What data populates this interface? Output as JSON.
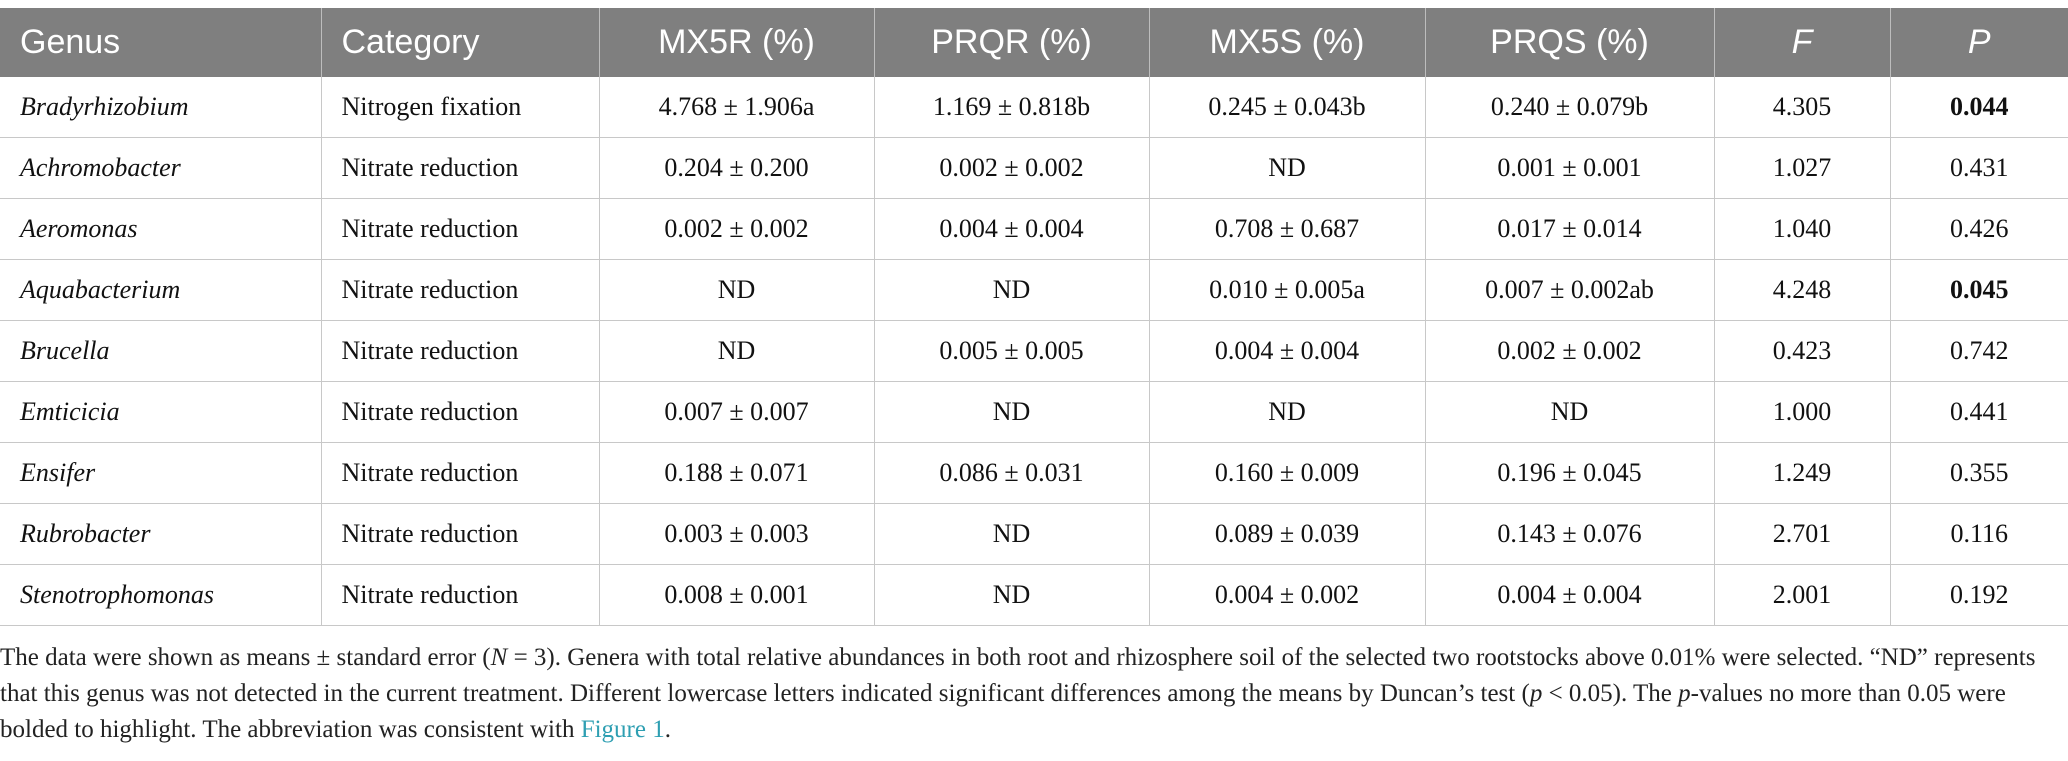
{
  "headers": [
    "Genus",
    "Category",
    "MX5R (%)",
    "PRQR (%)",
    "MX5S (%)",
    "PRQS (%)",
    "F",
    "P"
  ],
  "rows": [
    {
      "genus": "Bradyrhizobium",
      "category": "Nitrogen fixation",
      "mx5r": "4.768 ± 1.906a",
      "prqr": "1.169 ± 0.818b",
      "mx5s": "0.245 ± 0.043b",
      "prqs": "0.240 ± 0.079b",
      "f": "4.305",
      "p": "0.044",
      "p_bold": true
    },
    {
      "genus": "Achromobacter",
      "category": "Nitrate reduction",
      "mx5r": "0.204 ± 0.200",
      "prqr": "0.002 ± 0.002",
      "mx5s": "ND",
      "prqs": "0.001 ± 0.001",
      "f": "1.027",
      "p": "0.431",
      "p_bold": false
    },
    {
      "genus": "Aeromonas",
      "category": "Nitrate reduction",
      "mx5r": "0.002 ± 0.002",
      "prqr": "0.004 ± 0.004",
      "mx5s": "0.708 ± 0.687",
      "prqs": "0.017 ± 0.014",
      "f": "1.040",
      "p": "0.426",
      "p_bold": false
    },
    {
      "genus": "Aquabacterium",
      "category": "Nitrate reduction",
      "mx5r": "ND",
      "prqr": "ND",
      "mx5s": "0.010 ± 0.005a",
      "prqs": "0.007 ± 0.002ab",
      "f": "4.248",
      "p": "0.045",
      "p_bold": true
    },
    {
      "genus": "Brucella",
      "category": "Nitrate reduction",
      "mx5r": "ND",
      "prqr": "0.005 ± 0.005",
      "mx5s": "0.004 ± 0.004",
      "prqs": "0.002 ± 0.002",
      "f": "0.423",
      "p": "0.742",
      "p_bold": false
    },
    {
      "genus": "Emticicia",
      "category": "Nitrate reduction",
      "mx5r": "0.007 ± 0.007",
      "prqr": "ND",
      "mx5s": "ND",
      "prqs": "ND",
      "f": "1.000",
      "p": "0.441",
      "p_bold": false
    },
    {
      "genus": "Ensifer",
      "category": "Nitrate reduction",
      "mx5r": "0.188 ± 0.071",
      "prqr": "0.086 ± 0.031",
      "mx5s": "0.160 ± 0.009",
      "prqs": "0.196 ± 0.045",
      "f": "1.249",
      "p": "0.355",
      "p_bold": false
    },
    {
      "genus": "Rubrobacter",
      "category": "Nitrate reduction",
      "mx5r": "0.003 ± 0.003",
      "prqr": "ND",
      "mx5s": "0.089 ± 0.039",
      "prqs": "0.143 ± 0.076",
      "f": "2.701",
      "p": "0.116",
      "p_bold": false
    },
    {
      "genus": "Stenotrophomonas",
      "category": "Nitrate reduction",
      "mx5r": "0.008 ± 0.001",
      "prqr": "ND",
      "mx5s": "0.004 ± 0.002",
      "prqs": "0.004 ± 0.004",
      "f": "2.001",
      "p": "0.192",
      "p_bold": false
    }
  ],
  "footnote": {
    "s1": "The data were shown as means ± standard error (",
    "n_var": "N",
    "s2": " = 3). Genera with total relative abundances in both root and rhizosphere soil of the selected two rootstocks above 0.01% were selected. “ND” represents that this genus was not detected in the current treatment. Different lowercase letters indicated significant differences among the means by Duncan’s test (",
    "p_var": "p",
    "s3": " < 0.05). The ",
    "p_var2": "p",
    "s4": "-values no more than 0.05 were bolded to highlight. The abbreviation was consistent with ",
    "link": "Figure 1",
    "s5": "."
  }
}
